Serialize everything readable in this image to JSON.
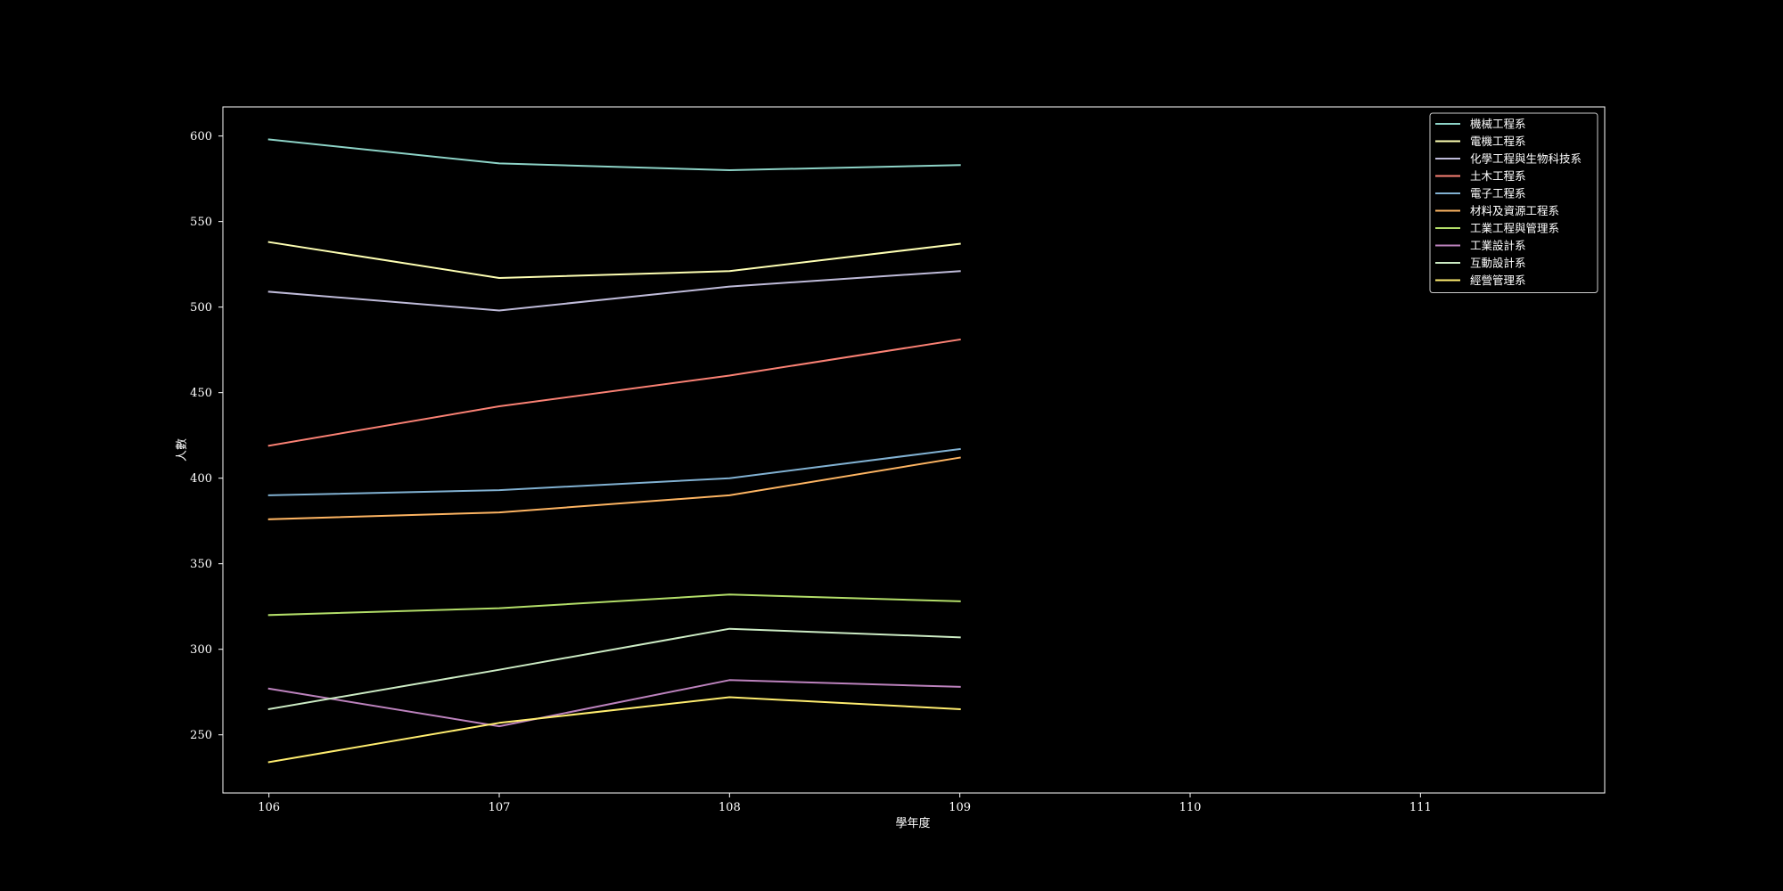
{
  "chart_data": {
    "type": "line",
    "title": "",
    "xlabel": "學年度",
    "ylabel": "人數",
    "x": [
      106,
      107,
      108,
      109
    ],
    "x_ticks": [
      106,
      107,
      108,
      109,
      110,
      111
    ],
    "xlim": [
      105.8,
      111.8
    ],
    "y_ticks": [
      250,
      300,
      350,
      400,
      450,
      500,
      550,
      600
    ],
    "ylim": [
      216,
      617
    ],
    "grid": false,
    "legend_position": "top-right",
    "series": [
      {
        "name": "機械工程系",
        "color": "#8dd3c7",
        "values": [
          598,
          584,
          580,
          583
        ]
      },
      {
        "name": "電機工程系",
        "color": "#feffb3",
        "values": [
          538,
          517,
          521,
          537
        ]
      },
      {
        "name": "化學工程與生物科技系",
        "color": "#bfbbd9",
        "values": [
          509,
          498,
          512,
          521
        ]
      },
      {
        "name": "土木工程系",
        "color": "#fa8174",
        "values": [
          419,
          442,
          460,
          481
        ]
      },
      {
        "name": "電子工程系",
        "color": "#81b1d2",
        "values": [
          390,
          393,
          400,
          417
        ]
      },
      {
        "name": "材料及資源工程系",
        "color": "#fdb462",
        "values": [
          376,
          380,
          390,
          412
        ]
      },
      {
        "name": "工業工程與管理系",
        "color": "#b3de69",
        "values": [
          320,
          324,
          332,
          328
        ]
      },
      {
        "name": "工業設計系",
        "color": "#bc82bd",
        "values": [
          277,
          255,
          282,
          278
        ]
      },
      {
        "name": "互動設計系",
        "color": "#ccebc4",
        "values": [
          265,
          288,
          312,
          307
        ]
      },
      {
        "name": "經營管理系",
        "color": "#ffed6f",
        "values": [
          234,
          257,
          272,
          265
        ]
      }
    ]
  }
}
